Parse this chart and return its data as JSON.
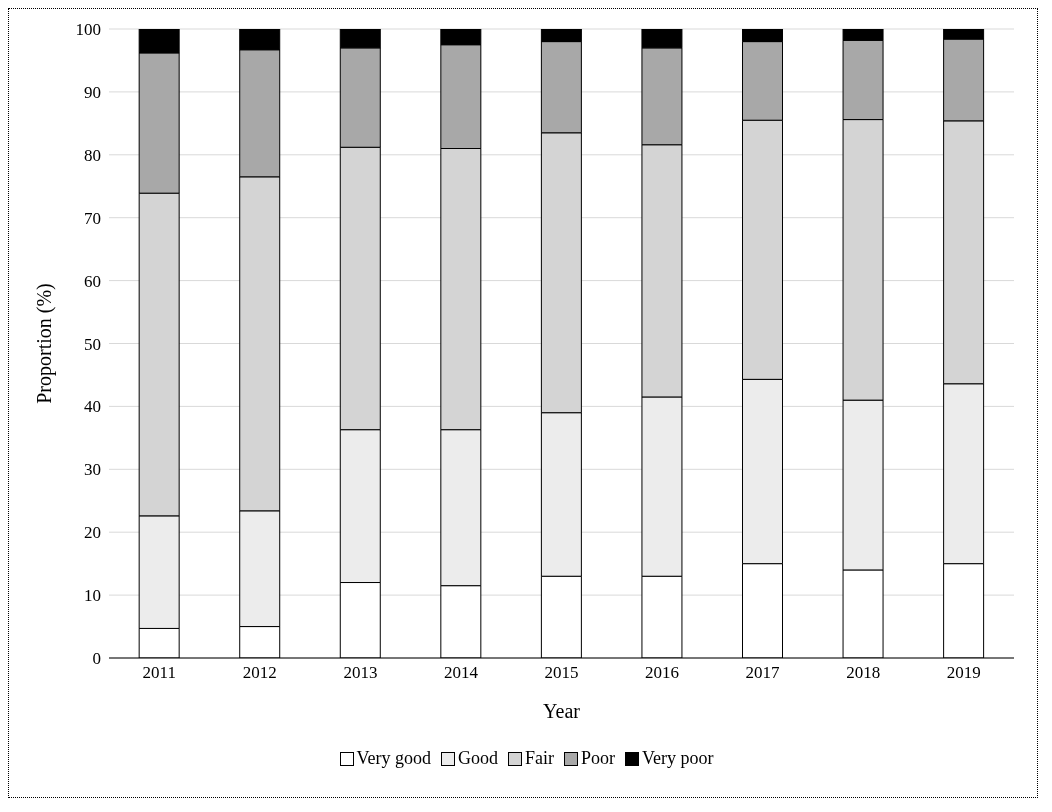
{
  "chart_data": {
    "type": "bar",
    "stacked": true,
    "xlabel": "Year",
    "ylabel": "Proportion (%)",
    "categories": [
      "2011",
      "2012",
      "2013",
      "2014",
      "2015",
      "2016",
      "2017",
      "2018",
      "2019"
    ],
    "series": [
      {
        "name": "Very good",
        "color": "#ffffff",
        "values": [
          4.7,
          5.0,
          12.0,
          11.5,
          13.0,
          13.0,
          15.0,
          14.0,
          15.0
        ]
      },
      {
        "name": "Good",
        "color": "#ececec",
        "values": [
          17.9,
          18.4,
          24.3,
          24.8,
          26.0,
          28.5,
          29.3,
          27.0,
          28.6
        ]
      },
      {
        "name": "Fair",
        "color": "#d4d4d4",
        "values": [
          51.3,
          53.1,
          44.9,
          44.7,
          44.5,
          40.1,
          41.2,
          44.6,
          41.8
        ]
      },
      {
        "name": "Poor",
        "color": "#a8a8a8",
        "values": [
          22.3,
          20.2,
          15.8,
          16.5,
          14.5,
          15.4,
          12.5,
          12.6,
          13.0
        ]
      },
      {
        "name": "Very poor",
        "color": "#000000",
        "values": [
          3.8,
          3.3,
          3.0,
          2.5,
          2.0,
          3.0,
          2.0,
          1.8,
          1.6
        ]
      }
    ],
    "ylim": [
      0,
      100
    ],
    "yticks": [
      0,
      10,
      20,
      30,
      40,
      50,
      60,
      70,
      80,
      90,
      100
    ],
    "grid": "y",
    "legend": "bottom"
  }
}
